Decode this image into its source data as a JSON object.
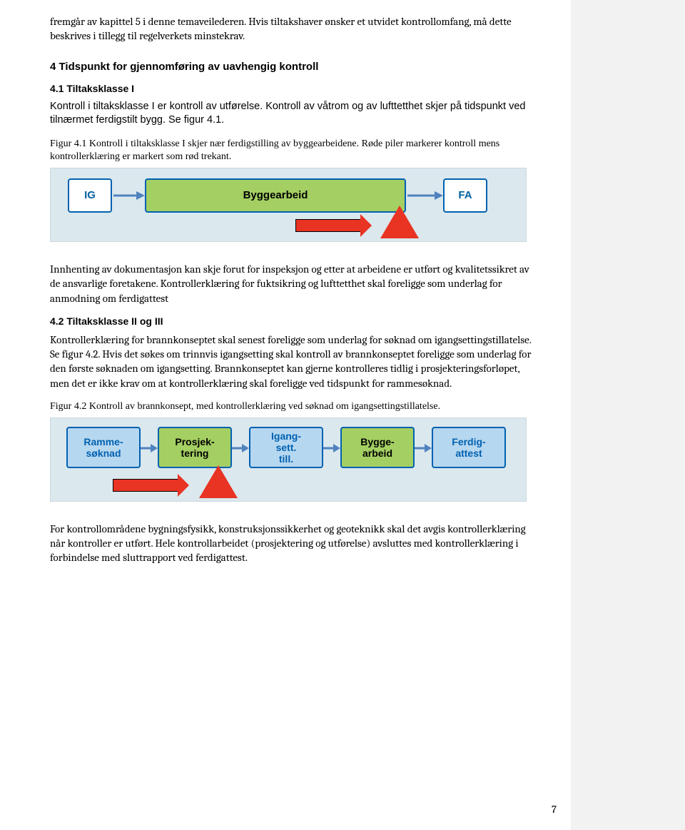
{
  "paragraphs": {
    "intro": "fremgår av kapittel 5 i denne temaveilederen. Hvis tiltakshaver ønsker et utvidet kontrollomfang, må dette beskrives i tillegg til regelverkets minstekrav.",
    "h2_4": "4 Tidspunkt for gjennomføring av uavhengig kontroll",
    "h3_41": "4.1 Tiltaksklasse I",
    "p41": "Kontroll i tiltaksklasse I er kontroll av utførelse. Kontroll av våtrom og av lufttetthet skjer på tidspunkt ved tilnærmet ferdigstilt bygg. Se figur 4.1.",
    "cap41": "Figur 4.1 Kontroll i tiltaksklasse I skjer nær ferdigstilling av byggearbeidene. Røde piler markerer kontroll mens kontrollerklæring er markert som rød trekant.",
    "p_after1": "Innhenting av dokumentasjon kan skje forut for inspeksjon og etter at arbeidene er utført og kvalitetssikret av de ansvarlige foretakene. Kontrollerklæring for fuktsikring og lufttetthet skal foreligge som underlag for anmodning om ferdigattest",
    "h3_42": "4.2 Tiltaksklasse II og III",
    "p42": "Kontrollerklæring for brannkonseptet skal senest foreligge som underlag for søknad om igangsettingstillatelse. Se figur 4.2. Hvis det søkes om trinnvis igangsetting skal kontroll av brannkonseptet foreligge som underlag for den første søknaden om igangsetting. Brannkonseptet kan gjerne kontrolleres tidlig i prosjekteringsforløpet, men det er ikke krav om at kontrollerklæring skal foreligge ved tidspunkt for rammesøknad.",
    "cap42": "Figur 4.2 Kontroll av brannkonsept, med kontrollerklæring ved søknad om igangsettingstillatelse.",
    "p_after2": "For kontrollområdene bygningsfysikk, konstruksjonssikkerhet og geoteknikk skal det avgis kontrollerklæring når kontroller er utført. Hele kontrollarbeidet (prosjektering og utførelse) avsluttes med kontrollerklæring i forbindelse med sluttrapport ved ferdigattest."
  },
  "diagram1": {
    "bg_color": "#dbe8ee",
    "boxes": {
      "ig": "IG",
      "bygg": "Byggearbeid",
      "fa": "FA"
    },
    "colors": {
      "small_bg": "#ffffff",
      "small_border": "#0061b0",
      "small_text": "#00619e",
      "large_bg": "#a4cf62",
      "arrow_blue": "#5082be",
      "arrow_red": "#e93323",
      "triangle_red": "#e93323"
    }
  },
  "diagram2": {
    "bg_color": "#dbe8ee",
    "boxes": {
      "ramme": "Ramme-\nsøknad",
      "prosj": "Prosjek-\ntering",
      "igang": "Igang-\nsett.\ntill.",
      "bygge": "Bygge-\narbeid",
      "ferdig": "Ferdig-\nattest"
    }
  },
  "page_number": "7"
}
